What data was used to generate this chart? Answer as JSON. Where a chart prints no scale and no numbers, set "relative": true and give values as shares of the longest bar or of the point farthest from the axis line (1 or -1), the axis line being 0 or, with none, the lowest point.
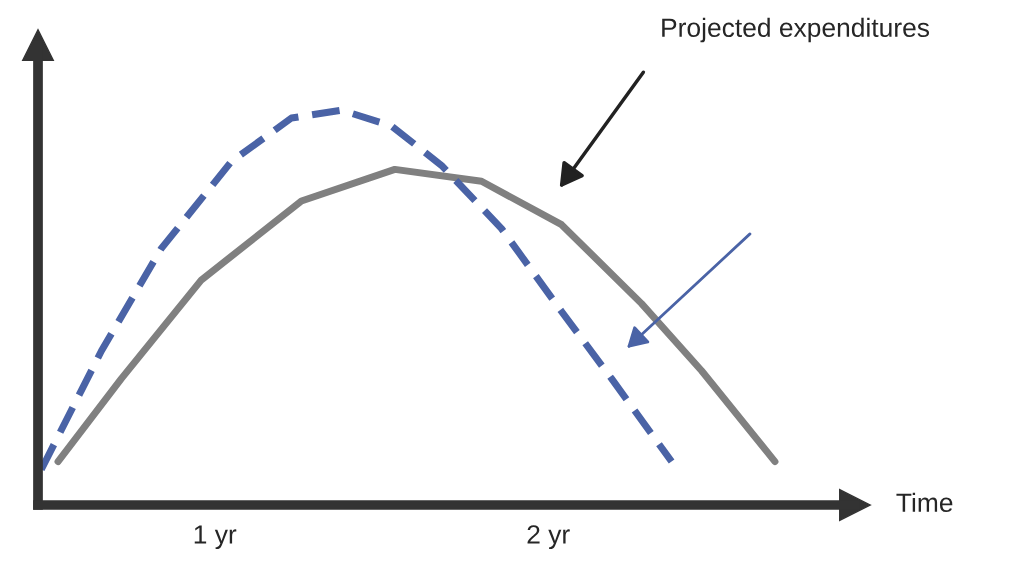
{
  "chart_data": {
    "type": "line",
    "relative": true,
    "xlabel": "Time",
    "xlim": [
      0.47,
      2.92
    ],
    "xticks": [
      {
        "value": 1,
        "label": "1 yr"
      },
      {
        "value": 2,
        "label": "2 yr"
      }
    ],
    "tick_labels": "x",
    "grid": false,
    "legend": false,
    "series": [
      {
        "color": "#808080",
        "line_style": "solid",
        "x": [
          0.53,
          0.72,
          0.96,
          1.26,
          1.54,
          1.8,
          2.04,
          2.28,
          2.46,
          2.68
        ],
        "values": [
          0.11,
          0.32,
          0.57,
          0.77,
          0.85,
          0.82,
          0.71,
          0.51,
          0.34,
          0.11
        ]
      },
      {
        "color": "#4a63a6",
        "line_style": "dashed",
        "x": [
          0.48,
          0.66,
          0.84,
          1.05,
          1.23,
          1.38,
          1.53,
          1.68,
          1.86,
          2.04,
          2.19,
          2.37
        ],
        "values": [
          0.09,
          0.39,
          0.65,
          0.87,
          0.98,
          1.0,
          0.96,
          0.86,
          0.7,
          0.49,
          0.32,
          0.11
        ]
      }
    ],
    "annotations": [
      "Projected expenditures"
    ]
  }
}
